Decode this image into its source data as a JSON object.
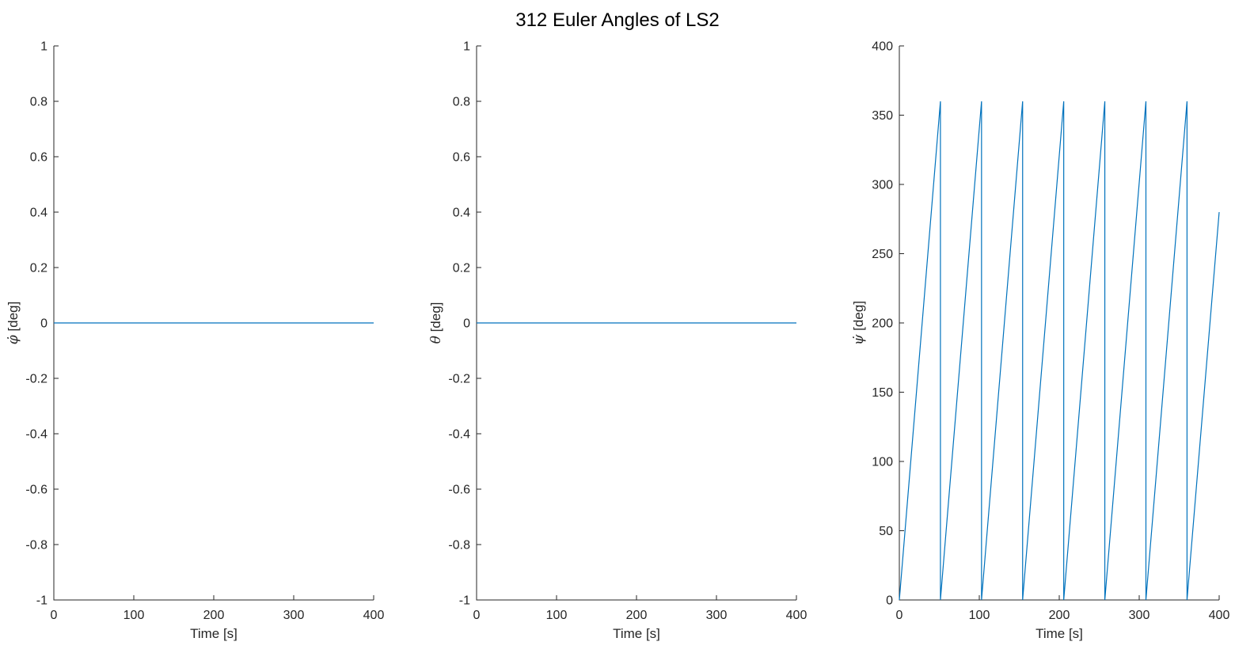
{
  "figure_title": "312 Euler Angles of LS2",
  "colors": {
    "series": "#0072BD",
    "axis": "#262626"
  },
  "chart_data": [
    {
      "type": "line",
      "title": "",
      "xlabel": "Time [s]",
      "ylabel_symbol": "φ̇",
      "ylabel_unit": " [deg]",
      "xlim": [
        0,
        400
      ],
      "ylim": [
        -1,
        1
      ],
      "xticks": [
        0,
        100,
        200,
        300,
        400
      ],
      "xtick_labels": [
        "0",
        "100",
        "200",
        "300",
        "400"
      ],
      "yticks": [
        -1,
        -0.8,
        -0.6,
        -0.4,
        -0.2,
        0,
        0.2,
        0.4,
        0.6,
        0.8,
        1
      ],
      "ytick_labels": [
        "-1",
        "-0.8",
        "-0.6",
        "-0.4",
        "-0.2",
        "0",
        "0.2",
        "0.4",
        "0.6",
        "0.8",
        "1"
      ],
      "grid": false,
      "series": [
        {
          "x": [
            0,
            400
          ],
          "y": [
            0,
            0
          ]
        }
      ]
    },
    {
      "type": "line",
      "title": "",
      "xlabel": "Time [s]",
      "ylabel_symbol": "θ",
      "ylabel_unit": " [deg]",
      "xlim": [
        0,
        400
      ],
      "ylim": [
        -1,
        1
      ],
      "xticks": [
        0,
        100,
        200,
        300,
        400
      ],
      "xtick_labels": [
        "0",
        "100",
        "200",
        "300",
        "400"
      ],
      "yticks": [
        -1,
        -0.8,
        -0.6,
        -0.4,
        -0.2,
        0,
        0.2,
        0.4,
        0.6,
        0.8,
        1
      ],
      "ytick_labels": [
        "-1",
        "-0.8",
        "-0.6",
        "-0.4",
        "-0.2",
        "0",
        "0.2",
        "0.4",
        "0.6",
        "0.8",
        "1"
      ],
      "grid": false,
      "series": [
        {
          "x": [
            0,
            400
          ],
          "y": [
            0,
            0
          ]
        }
      ]
    },
    {
      "type": "line",
      "title": "",
      "xlabel": "Time [s]",
      "ylabel_symbol": "ψ̇",
      "ylabel_unit": " [deg]",
      "xlim": [
        0,
        400
      ],
      "ylim": [
        0,
        400
      ],
      "xticks": [
        0,
        100,
        200,
        300,
        400
      ],
      "xtick_labels": [
        "0",
        "100",
        "200",
        "300",
        "400"
      ],
      "yticks": [
        0,
        50,
        100,
        150,
        200,
        250,
        300,
        350,
        400
      ],
      "ytick_labels": [
        "0",
        "50",
        "100",
        "150",
        "200",
        "250",
        "300",
        "350",
        "400"
      ],
      "grid": false,
      "series": [
        {
          "x": [
            0,
            51.4,
            51.4,
            102.8,
            102.8,
            154.2,
            154.2,
            205.6,
            205.6,
            257.0,
            257.0,
            308.4,
            308.4,
            359.8,
            359.8,
            400
          ],
          "y": [
            0,
            360,
            0,
            360,
            0,
            360,
            0,
            360,
            0,
            360,
            0,
            360,
            0,
            360,
            0,
            280
          ]
        }
      ]
    }
  ]
}
